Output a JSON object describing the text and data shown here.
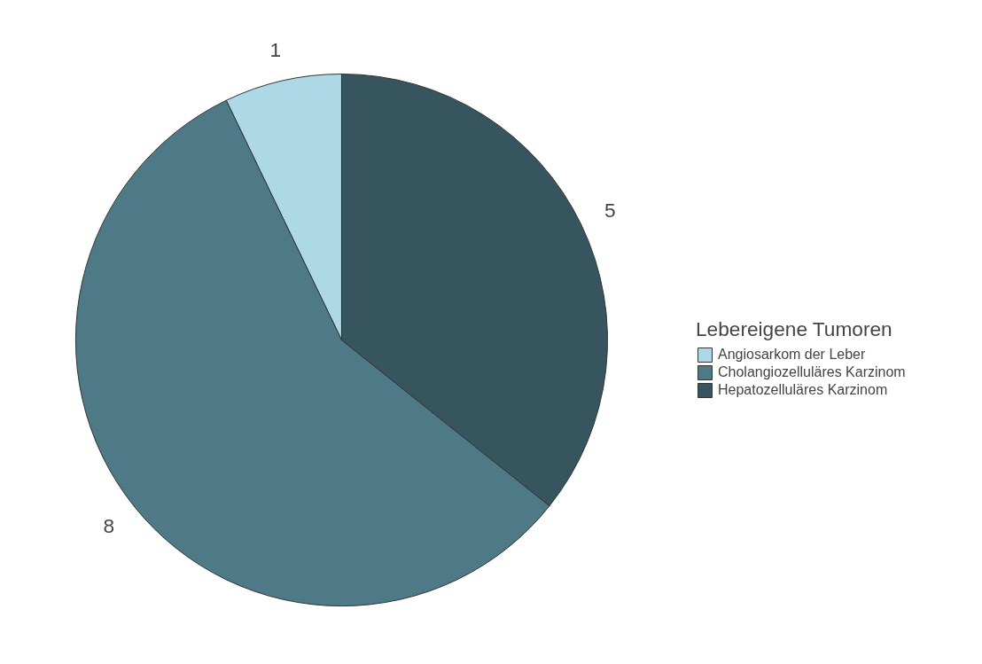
{
  "chart_data": {
    "type": "pie",
    "legend_title": "Lebereigene Tumoren",
    "categories": [
      "Angiosarkom der Leber",
      "Cholangiozelluläres Karzinom",
      "Hepatozelluläres Karzinom"
    ],
    "values": [
      1,
      8,
      5
    ],
    "colors": [
      "#add8e6",
      "#4e7986",
      "#36555f"
    ],
    "data_labels": true,
    "legend": "right"
  }
}
